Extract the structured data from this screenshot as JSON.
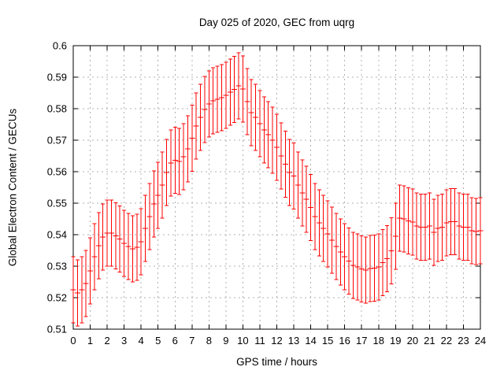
{
  "chart_data": {
    "type": "scatter",
    "style": "yerrorbars",
    "title": "Day 025 of 2020, GEC from uqrg",
    "xlabel": "GPS time / hours",
    "ylabel": "Global Electron Content / GECUs",
    "xlim": [
      0,
      24
    ],
    "ylim": [
      0.51,
      0.6
    ],
    "grid": true,
    "legend": "none",
    "axis_color": "#000000",
    "grid_color": "#b0b0b0",
    "xtick_labels": [
      "0",
      "1",
      "2",
      "3",
      "4",
      "5",
      "6",
      "7",
      "8",
      "9",
      "10",
      "11",
      "12",
      "13",
      "14",
      "15",
      "16",
      "17",
      "18",
      "19",
      "20",
      "21",
      "22",
      "23",
      "24"
    ],
    "xtick_values": [
      0,
      1,
      2,
      3,
      4,
      5,
      6,
      7,
      8,
      9,
      10,
      11,
      12,
      13,
      14,
      15,
      16,
      17,
      18,
      19,
      20,
      21,
      22,
      23,
      24
    ],
    "ytick_labels": [
      "0.51",
      "0.52",
      "0.53",
      "0.54",
      "0.55",
      "0.56",
      "0.57",
      "0.58",
      "0.59",
      "0.6"
    ],
    "ytick_values": [
      0.51,
      0.52,
      0.53,
      0.54,
      0.55,
      0.56,
      0.57,
      0.58,
      0.59,
      0.6
    ],
    "x": [
      0,
      0.25,
      0.5,
      0.75,
      1,
      1.25,
      1.5,
      1.75,
      2,
      2.25,
      2.5,
      2.75,
      3,
      3.25,
      3.5,
      3.75,
      4,
      4.25,
      4.5,
      4.75,
      5,
      5.25,
      5.5,
      5.75,
      6,
      6.25,
      6.5,
      6.75,
      7,
      7.25,
      7.5,
      7.75,
      8,
      8.25,
      8.5,
      8.75,
      9,
      9.25,
      9.5,
      9.75,
      10,
      10.25,
      10.5,
      10.75,
      11,
      11.25,
      11.5,
      11.75,
      12,
      12.25,
      12.5,
      12.75,
      13,
      13.25,
      13.5,
      13.75,
      14,
      14.25,
      14.5,
      14.75,
      15,
      15.25,
      15.5,
      15.75,
      16,
      16.25,
      16.5,
      16.75,
      17,
      17.25,
      17.5,
      17.75,
      18,
      18.25,
      18.5,
      18.75,
      19,
      19.25,
      19.5,
      19.75,
      20,
      20.25,
      20.5,
      20.75,
      21,
      21.25,
      21.5,
      21.75,
      22,
      22.25,
      22.5,
      22.75,
      23,
      23.25,
      23.5,
      23.75,
      24
    ],
    "series": [
      {
        "name": "GEC",
        "color": "#ff0000",
        "error_halfwidth": 0.0105,
        "values": [
          0.5225,
          0.5215,
          0.5225,
          0.5245,
          0.5285,
          0.533,
          0.5365,
          0.5393,
          0.5405,
          0.5405,
          0.5396,
          0.5386,
          0.5372,
          0.5362,
          0.5355,
          0.536,
          0.5378,
          0.542,
          0.5458,
          0.5498,
          0.5525,
          0.5558,
          0.5597,
          0.5628,
          0.5636,
          0.5632,
          0.5648,
          0.5672,
          0.5706,
          0.5745,
          0.5772,
          0.5798,
          0.5815,
          0.5825,
          0.583,
          0.5835,
          0.5843,
          0.5853,
          0.5861,
          0.5872,
          0.5862,
          0.5822,
          0.5788,
          0.5772,
          0.5753,
          0.5733,
          0.5718,
          0.57,
          0.5678,
          0.565,
          0.5624,
          0.5597,
          0.5586,
          0.5558,
          0.5533,
          0.5512,
          0.5486,
          0.5458,
          0.5437,
          0.542,
          0.5402,
          0.5383,
          0.5362,
          0.5345,
          0.533,
          0.5316,
          0.5303,
          0.5297,
          0.5291,
          0.5287,
          0.5293,
          0.5294,
          0.5297,
          0.5311,
          0.5324,
          0.5349,
          0.5395,
          0.5453,
          0.545,
          0.5444,
          0.544,
          0.5428,
          0.5424,
          0.5424,
          0.5427,
          0.5408,
          0.542,
          0.5424,
          0.5437,
          0.5441,
          0.5441,
          0.5428,
          0.5424,
          0.5424,
          0.5412,
          0.541,
          0.5413
        ]
      }
    ]
  }
}
